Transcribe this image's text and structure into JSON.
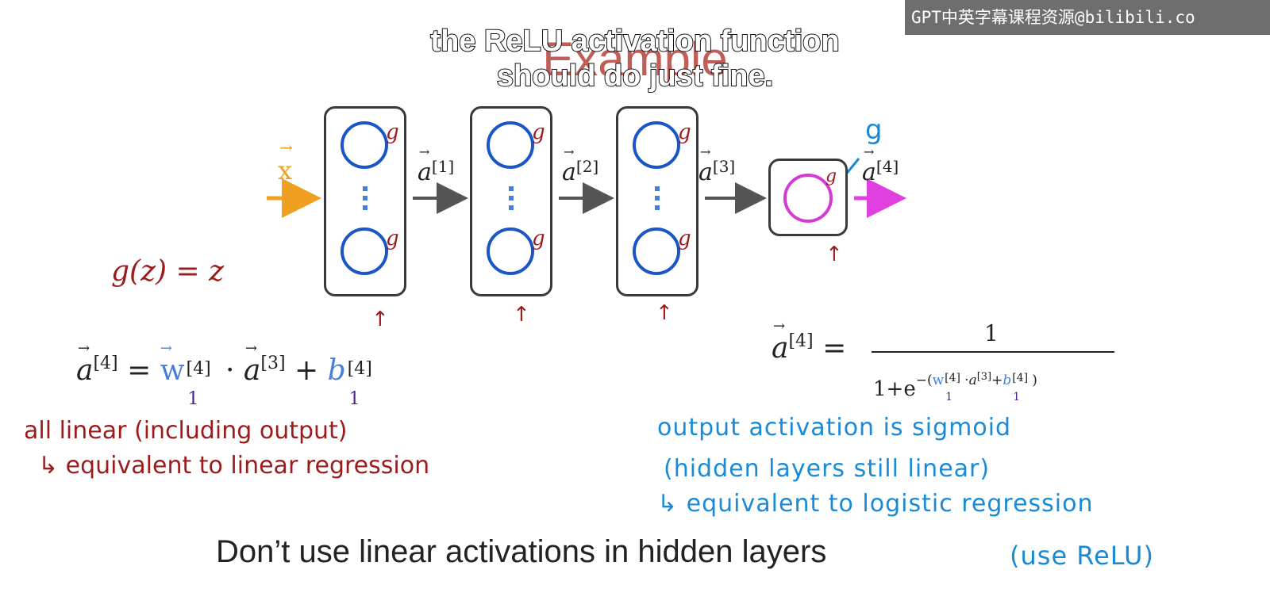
{
  "watermark": "GPT中英字幕课程资源@bilibili.co",
  "caption": {
    "line1": "the ReLU activation function",
    "line2": "should do just fine."
  },
  "slide_title": "Example",
  "network": {
    "input_label": "x",
    "arrow_labels": [
      "a",
      "a",
      "a",
      "a"
    ],
    "arrow_superscripts": [
      "[1]",
      "[2]",
      "[3]",
      "[4]"
    ],
    "activation_label": "g",
    "output_activation_label": "g"
  },
  "left_equation": {
    "g_of_z": "g(z) = z",
    "a4_lhs": "a",
    "a4_sup": "[4]",
    "equals": "=",
    "w": "w",
    "w_sub": "1",
    "w_sup": "[4]",
    "dot": "·",
    "a3": "a",
    "a3_sup": "[3]",
    "plus": "+",
    "b": "b",
    "b_sub": "1",
    "b_sup": "[4]"
  },
  "right_equation": {
    "lhs": "a",
    "lhs_sup": "[4]",
    "equals": "=",
    "numerator": "1",
    "denominator_prefix": "1+e",
    "exponent_open": "−(",
    "exponent_w": "w",
    "exponent_w_sub": "1",
    "exponent_w_sup": "[4]",
    "exponent_dot": "·",
    "exponent_a": "a",
    "exponent_a_sup": "[3]",
    "exponent_plus": "+",
    "exponent_b": "b",
    "exponent_b_sub": "1",
    "exponent_b_sup": "[4]",
    "exponent_close": ")"
  },
  "notes_red": {
    "line1": "all linear (including output)",
    "line2": "↳ equivalent to linear regression"
  },
  "notes_blue": {
    "line1": "output activation is sigmoid",
    "line2": "(hidden layers still linear)",
    "line3": "↳ equivalent to logistic regression"
  },
  "bottom": {
    "text": "Don’t use linear activations in hidden layers",
    "note": "(use ReLU)"
  },
  "colors": {
    "neuron": "#1a56c6",
    "output_neuron": "#d63ad6",
    "input_arrow": "#f0a020",
    "output_arrow": "#e040e0",
    "red_ink": "#9b1c1c",
    "blue_ink": "#1a8ad6",
    "arrow_gray": "#555555"
  },
  "up_mark": "↑"
}
